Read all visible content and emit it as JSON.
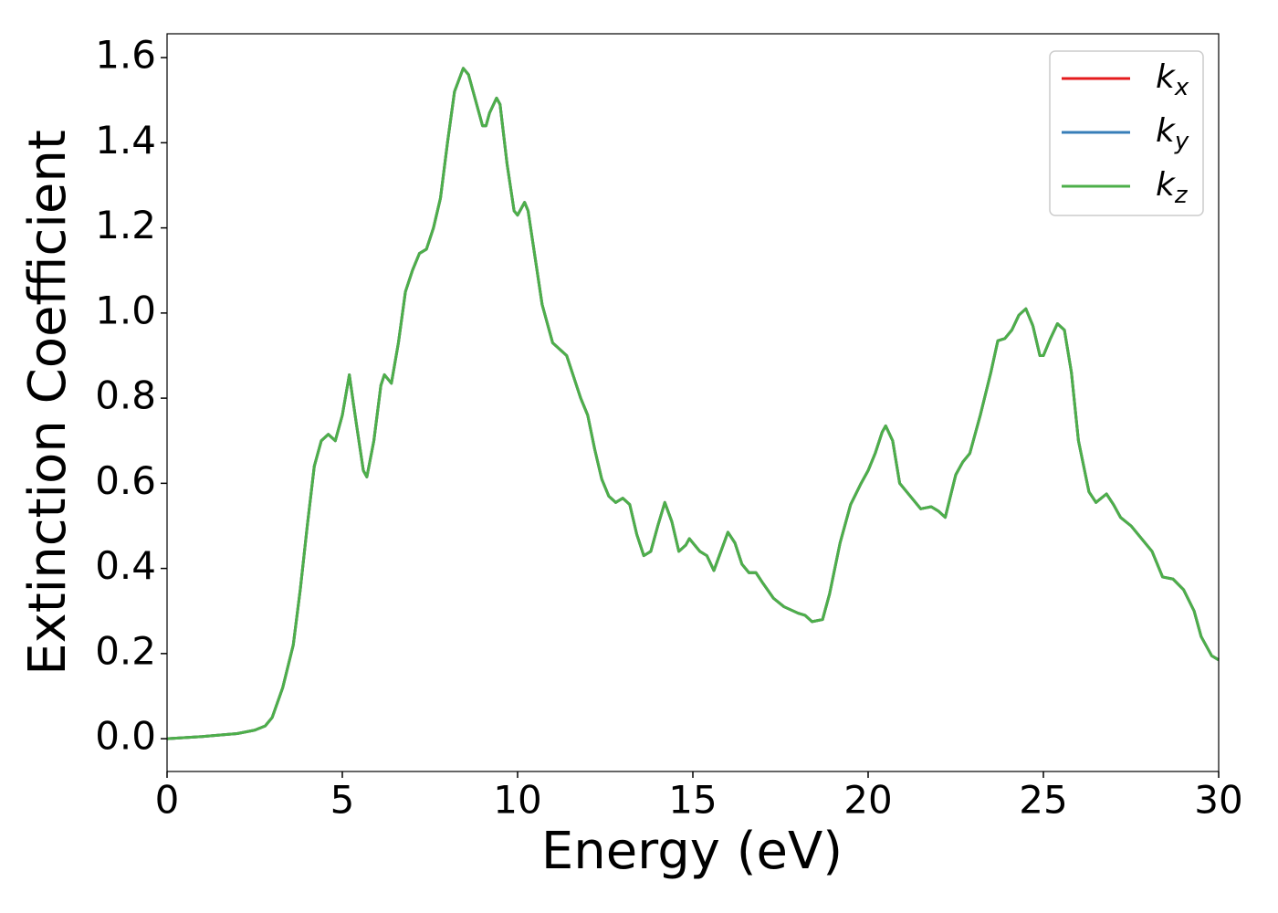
{
  "chart_data": {
    "type": "line",
    "xlabel": "Energy (eV)",
    "ylabel": "Extinction Coefficient",
    "x": [
      0,
      1,
      2,
      2.5,
      2.8,
      3.0,
      3.3,
      3.6,
      3.8,
      4.0,
      4.2,
      4.4,
      4.6,
      4.8,
      5.0,
      5.2,
      5.4,
      5.6,
      5.7,
      5.9,
      6.1,
      6.2,
      6.4,
      6.6,
      6.8,
      7.0,
      7.2,
      7.4,
      7.6,
      7.8,
      8.0,
      8.2,
      8.45,
      8.6,
      8.8,
      9.0,
      9.1,
      9.2,
      9.4,
      9.5,
      9.7,
      9.9,
      10.0,
      10.2,
      10.3,
      10.5,
      10.7,
      11.0,
      11.2,
      11.4,
      11.6,
      11.8,
      12.0,
      12.2,
      12.4,
      12.6,
      12.8,
      13.0,
      13.2,
      13.4,
      13.6,
      13.8,
      14.0,
      14.2,
      14.4,
      14.6,
      14.8,
      14.9,
      15.2,
      15.4,
      15.6,
      15.8,
      16.0,
      16.2,
      16.4,
      16.6,
      16.8,
      17.0,
      17.3,
      17.6,
      18.0,
      18.2,
      18.4,
      18.7,
      18.9,
      19.2,
      19.5,
      19.8,
      20.0,
      20.2,
      20.4,
      20.5,
      20.7,
      20.9,
      21.2,
      21.5,
      21.8,
      22.0,
      22.2,
      22.5,
      22.7,
      22.9,
      23.2,
      23.5,
      23.7,
      23.9,
      24.1,
      24.3,
      24.5,
      24.7,
      24.9,
      25.0,
      25.2,
      25.4,
      25.6,
      25.8,
      26.0,
      26.3,
      26.5,
      26.8,
      27.0,
      27.2,
      27.5,
      27.8,
      28.1,
      28.4,
      28.7,
      29.0,
      29.3,
      29.5,
      29.8,
      30.0
    ],
    "series": [
      {
        "name": "kx",
        "color": "#e41a1c",
        "values": [
          0.0,
          0.005,
          0.012,
          0.02,
          0.03,
          0.05,
          0.12,
          0.22,
          0.35,
          0.5,
          0.64,
          0.7,
          0.715,
          0.7,
          0.76,
          0.855,
          0.74,
          0.63,
          0.615,
          0.7,
          0.83,
          0.855,
          0.835,
          0.93,
          1.05,
          1.1,
          1.14,
          1.15,
          1.2,
          1.27,
          1.4,
          1.52,
          1.575,
          1.56,
          1.5,
          1.44,
          1.44,
          1.47,
          1.505,
          1.49,
          1.35,
          1.24,
          1.23,
          1.26,
          1.24,
          1.13,
          1.02,
          0.93,
          0.915,
          0.9,
          0.85,
          0.8,
          0.76,
          0.68,
          0.61,
          0.57,
          0.555,
          0.565,
          0.55,
          0.48,
          0.43,
          0.44,
          0.5,
          0.555,
          0.51,
          0.44,
          0.455,
          0.47,
          0.44,
          0.43,
          0.395,
          0.44,
          0.485,
          0.46,
          0.41,
          0.39,
          0.39,
          0.365,
          0.33,
          0.31,
          0.295,
          0.29,
          0.275,
          0.28,
          0.34,
          0.46,
          0.55,
          0.6,
          0.63,
          0.67,
          0.72,
          0.735,
          0.7,
          0.6,
          0.57,
          0.54,
          0.545,
          0.535,
          0.52,
          0.62,
          0.65,
          0.67,
          0.76,
          0.86,
          0.935,
          0.94,
          0.96,
          0.995,
          1.01,
          0.97,
          0.9,
          0.9,
          0.94,
          0.975,
          0.96,
          0.86,
          0.7,
          0.58,
          0.555,
          0.575,
          0.55,
          0.52,
          0.5,
          0.47,
          0.44,
          0.38,
          0.375,
          0.35,
          0.3,
          0.24,
          0.195,
          0.185
        ]
      },
      {
        "name": "ky",
        "color": "#377eb8",
        "values": [
          0.0,
          0.005,
          0.012,
          0.02,
          0.03,
          0.05,
          0.12,
          0.22,
          0.35,
          0.5,
          0.64,
          0.7,
          0.715,
          0.7,
          0.76,
          0.855,
          0.74,
          0.63,
          0.615,
          0.7,
          0.83,
          0.855,
          0.835,
          0.93,
          1.05,
          1.1,
          1.14,
          1.15,
          1.2,
          1.27,
          1.4,
          1.52,
          1.575,
          1.56,
          1.5,
          1.44,
          1.44,
          1.47,
          1.505,
          1.49,
          1.35,
          1.24,
          1.23,
          1.26,
          1.24,
          1.13,
          1.02,
          0.93,
          0.915,
          0.9,
          0.85,
          0.8,
          0.76,
          0.68,
          0.61,
          0.57,
          0.555,
          0.565,
          0.55,
          0.48,
          0.43,
          0.44,
          0.5,
          0.555,
          0.51,
          0.44,
          0.455,
          0.47,
          0.44,
          0.43,
          0.395,
          0.44,
          0.485,
          0.46,
          0.41,
          0.39,
          0.39,
          0.365,
          0.33,
          0.31,
          0.295,
          0.29,
          0.275,
          0.28,
          0.34,
          0.46,
          0.55,
          0.6,
          0.63,
          0.67,
          0.72,
          0.735,
          0.7,
          0.6,
          0.57,
          0.54,
          0.545,
          0.535,
          0.52,
          0.62,
          0.65,
          0.67,
          0.76,
          0.86,
          0.935,
          0.94,
          0.96,
          0.995,
          1.01,
          0.97,
          0.9,
          0.9,
          0.94,
          0.975,
          0.96,
          0.86,
          0.7,
          0.58,
          0.555,
          0.575,
          0.55,
          0.52,
          0.5,
          0.47,
          0.44,
          0.38,
          0.375,
          0.35,
          0.3,
          0.24,
          0.195,
          0.185
        ]
      },
      {
        "name": "kz",
        "color": "#4daf4a",
        "values": [
          0.0,
          0.005,
          0.012,
          0.02,
          0.03,
          0.05,
          0.12,
          0.22,
          0.35,
          0.5,
          0.64,
          0.7,
          0.715,
          0.7,
          0.76,
          0.855,
          0.74,
          0.63,
          0.615,
          0.7,
          0.83,
          0.855,
          0.835,
          0.93,
          1.05,
          1.1,
          1.14,
          1.15,
          1.2,
          1.27,
          1.4,
          1.52,
          1.575,
          1.56,
          1.5,
          1.44,
          1.44,
          1.47,
          1.505,
          1.49,
          1.35,
          1.24,
          1.23,
          1.26,
          1.24,
          1.13,
          1.02,
          0.93,
          0.915,
          0.9,
          0.85,
          0.8,
          0.76,
          0.68,
          0.61,
          0.57,
          0.555,
          0.565,
          0.55,
          0.48,
          0.43,
          0.44,
          0.5,
          0.555,
          0.51,
          0.44,
          0.455,
          0.47,
          0.44,
          0.43,
          0.395,
          0.44,
          0.485,
          0.46,
          0.41,
          0.39,
          0.39,
          0.365,
          0.33,
          0.31,
          0.295,
          0.29,
          0.275,
          0.28,
          0.34,
          0.46,
          0.55,
          0.6,
          0.63,
          0.67,
          0.72,
          0.735,
          0.7,
          0.6,
          0.57,
          0.54,
          0.545,
          0.535,
          0.52,
          0.62,
          0.65,
          0.67,
          0.76,
          0.86,
          0.935,
          0.94,
          0.96,
          0.995,
          1.01,
          0.97,
          0.9,
          0.9,
          0.94,
          0.975,
          0.96,
          0.86,
          0.7,
          0.58,
          0.555,
          0.575,
          0.55,
          0.52,
          0.5,
          0.47,
          0.44,
          0.38,
          0.375,
          0.35,
          0.3,
          0.24,
          0.195,
          0.185
        ]
      }
    ],
    "xlim": [
      0,
      30
    ],
    "xticks": [
      0,
      5,
      10,
      15,
      20,
      25,
      30
    ],
    "ylim": [
      -0.077,
      1.656
    ],
    "yticks": [
      {
        "value": 0,
        "label": "0.0"
      },
      0.2,
      0.4,
      0.6,
      0.8,
      {
        "value": 1,
        "label": "1.0"
      },
      1.2,
      1.4,
      1.6
    ],
    "legend": "upper right",
    "grid": false
  }
}
